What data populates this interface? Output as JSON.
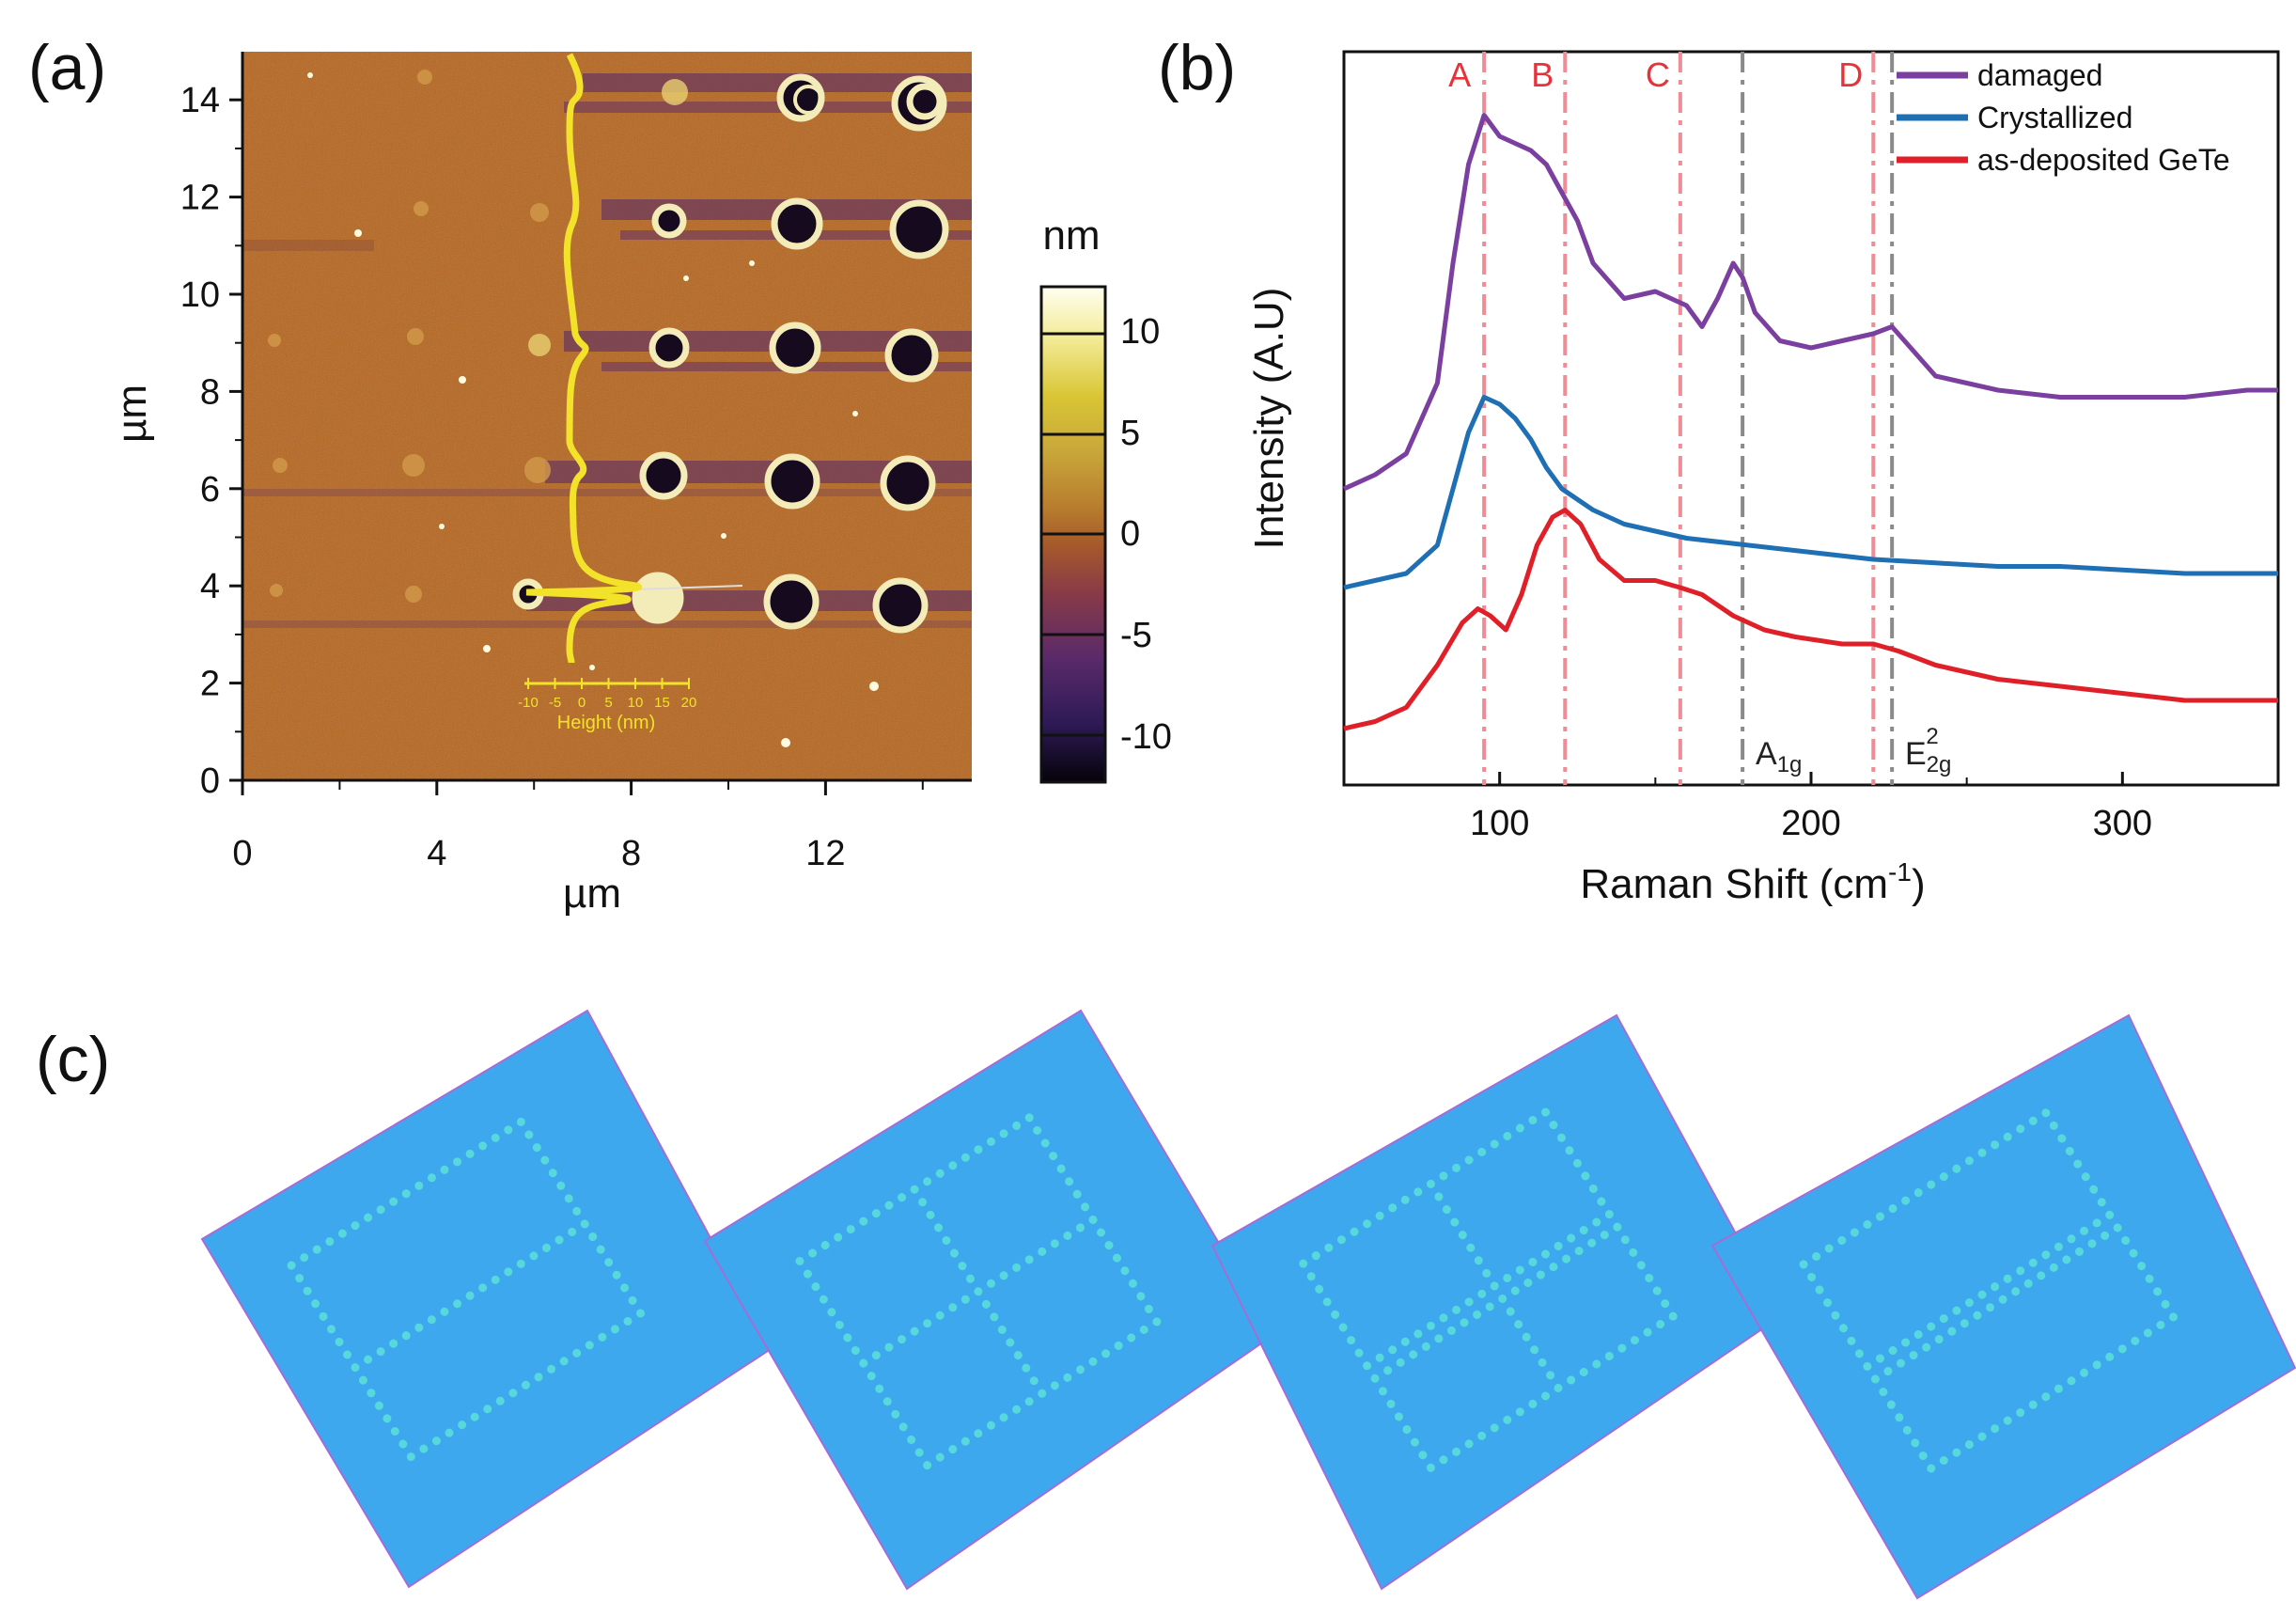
{
  "panel_a": {
    "label": "(a)",
    "x_ticks": [
      "0",
      "4",
      "8",
      "12"
    ],
    "y_ticks": [
      "0",
      "2",
      "4",
      "6",
      "8",
      "10",
      "12",
      "14"
    ],
    "x_unit": "µm",
    "y_unit": "µm",
    "colorbar_unit": "nm",
    "colorbar_ticks": [
      "10",
      "5",
      "0",
      "-5",
      "-10"
    ],
    "height_scale_ticks": [
      "-10",
      "-5",
      "0",
      "5",
      "10",
      "15",
      "20"
    ],
    "height_label": "Height (nm)",
    "colors": {
      "substrate": "#b5651d",
      "bump": "#f4ecb8",
      "pit": "#160a1e",
      "stripe": "#6c3a5c",
      "profile": "#f2e22a"
    }
  },
  "panel_b": {
    "label": "(b)",
    "peaks": [
      "A",
      "B",
      "C",
      "D"
    ],
    "mode_a1g_base": "A",
    "mode_a1g_sub": "1g",
    "mode_e2g_base": "E",
    "mode_e2g_sub": "2g",
    "mode_e2g_sup": "2",
    "x_ticks": [
      "100",
      "200",
      "300"
    ],
    "ylabel": "Intensity (A.U)",
    "xlabel_main": "Raman Shift (cm",
    "xlabel_sup": "-1",
    "xlabel_end": ")",
    "chart_data": {
      "type": "line",
      "xlabel": "Raman Shift (cm-1)",
      "ylabel": "Intensity (A.U)",
      "xlim": [
        50,
        350
      ],
      "ylim": [
        0,
        1
      ],
      "y_ticks_shown": false,
      "legend_position": "top-right",
      "peak_lines": [
        {
          "label": "A",
          "x": 95,
          "color": "#f08c96"
        },
        {
          "label": "B",
          "x": 121,
          "color": "#f08c96"
        },
        {
          "label": "C",
          "x": 158,
          "color": "#f08c96"
        },
        {
          "label": "A1g",
          "x": 178,
          "color": "#8a8a8a"
        },
        {
          "label": "D",
          "x": 220,
          "color": "#f08c96"
        },
        {
          "label": "E2g2",
          "x": 226,
          "color": "#8a8a8a"
        }
      ],
      "series": [
        {
          "name": "damaged",
          "color": "#7b3fa0",
          "x": [
            50,
            60,
            70,
            80,
            85,
            90,
            95,
            100,
            105,
            110,
            115,
            120,
            125,
            130,
            140,
            150,
            160,
            165,
            170,
            175,
            178,
            182,
            190,
            200,
            210,
            220,
            226,
            230,
            240,
            260,
            280,
            300,
            320,
            340,
            350
          ],
          "y": [
            0.4,
            0.42,
            0.45,
            0.55,
            0.72,
            0.86,
            0.93,
            0.9,
            0.89,
            0.88,
            0.86,
            0.82,
            0.78,
            0.72,
            0.67,
            0.68,
            0.66,
            0.63,
            0.67,
            0.72,
            0.7,
            0.65,
            0.61,
            0.6,
            0.61,
            0.62,
            0.63,
            0.61,
            0.56,
            0.54,
            0.53,
            0.53,
            0.53,
            0.54,
            0.54
          ]
        },
        {
          "name": "Crystallized",
          "color": "#1f6fb4",
          "x": [
            50,
            60,
            70,
            80,
            85,
            90,
            95,
            100,
            105,
            110,
            115,
            120,
            130,
            140,
            150,
            160,
            180,
            200,
            220,
            240,
            260,
            280,
            300,
            320,
            340,
            350
          ],
          "y": [
            0.26,
            0.27,
            0.28,
            0.32,
            0.4,
            0.48,
            0.53,
            0.52,
            0.5,
            0.47,
            0.43,
            0.4,
            0.37,
            0.35,
            0.34,
            0.33,
            0.32,
            0.31,
            0.3,
            0.295,
            0.29,
            0.29,
            0.285,
            0.28,
            0.28,
            0.28
          ]
        },
        {
          "name": "as-deposited GeTe",
          "color": "#e02028",
          "x": [
            50,
            60,
            70,
            80,
            88,
            93,
            97,
            102,
            107,
            112,
            117,
            121,
            126,
            132,
            140,
            150,
            158,
            165,
            175,
            185,
            195,
            210,
            220,
            228,
            240,
            260,
            280,
            300,
            320,
            340,
            350
          ],
          "y": [
            0.06,
            0.07,
            0.09,
            0.15,
            0.21,
            0.23,
            0.22,
            0.2,
            0.25,
            0.32,
            0.36,
            0.37,
            0.35,
            0.3,
            0.27,
            0.27,
            0.26,
            0.25,
            0.22,
            0.2,
            0.19,
            0.18,
            0.18,
            0.17,
            0.15,
            0.13,
            0.12,
            0.11,
            0.1,
            0.1,
            0.1
          ]
        }
      ]
    }
  },
  "panel_c": {
    "label": "(c)",
    "colors": {
      "background": "#3ea8ee",
      "dots": "#5ee3d8"
    }
  }
}
